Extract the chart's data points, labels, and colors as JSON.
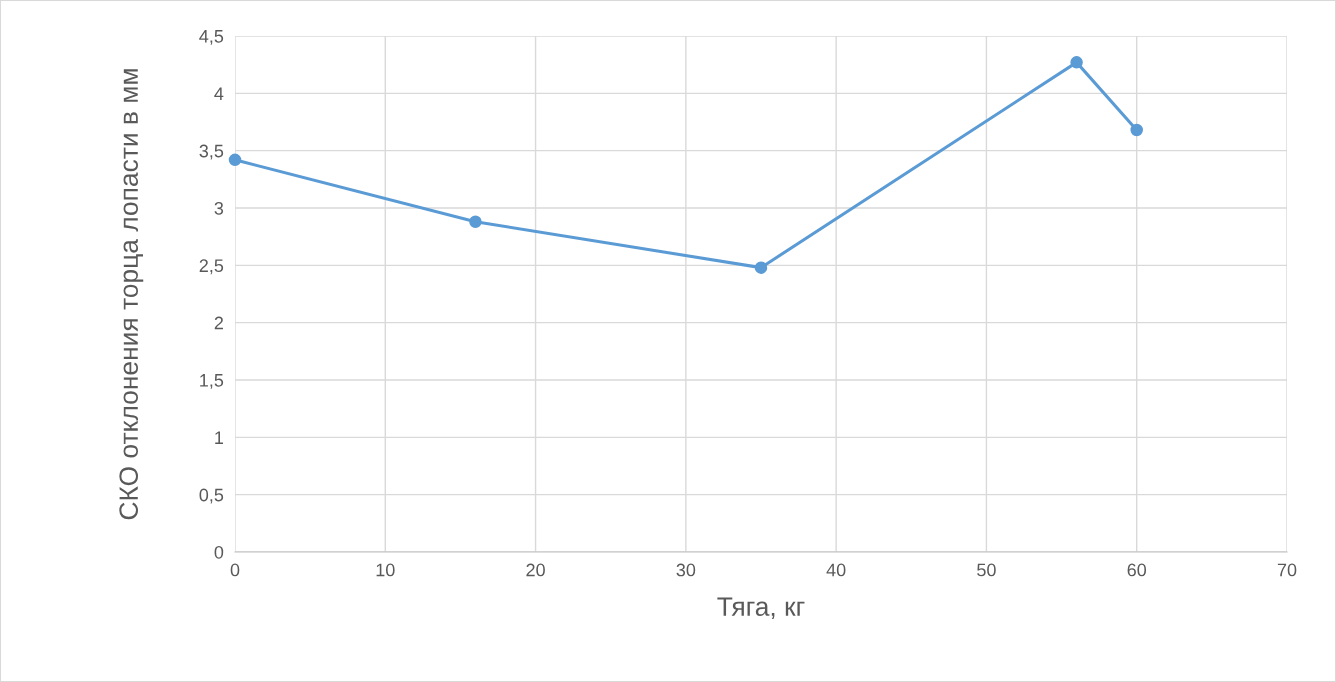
{
  "chart_data": {
    "type": "line",
    "xlabel": "Тяга, кг",
    "ylabel": "СКО отклонения торца лопасти в мм",
    "x": [
      0,
      16,
      35,
      56,
      60
    ],
    "series": [
      {
        "color": "#5b9bd5",
        "values": [
          3.42,
          2.88,
          2.48,
          4.27,
          3.68
        ]
      }
    ],
    "xlim": [
      0,
      70
    ],
    "xticks": [
      0,
      10,
      20,
      30,
      40,
      50,
      60,
      70
    ],
    "ylim": [
      0,
      4.5
    ],
    "yticks": [
      0,
      {
        "value": 0.5,
        "label": "0,5"
      },
      1,
      {
        "value": 1.5,
        "label": "1,5"
      },
      2,
      {
        "value": 2.5,
        "label": "2,5"
      },
      3,
      {
        "value": 3.5,
        "label": "3,5"
      },
      4,
      {
        "value": 4.5,
        "label": "4,5"
      }
    ],
    "grid": true,
    "marker": "circle",
    "line_style": "solid"
  }
}
